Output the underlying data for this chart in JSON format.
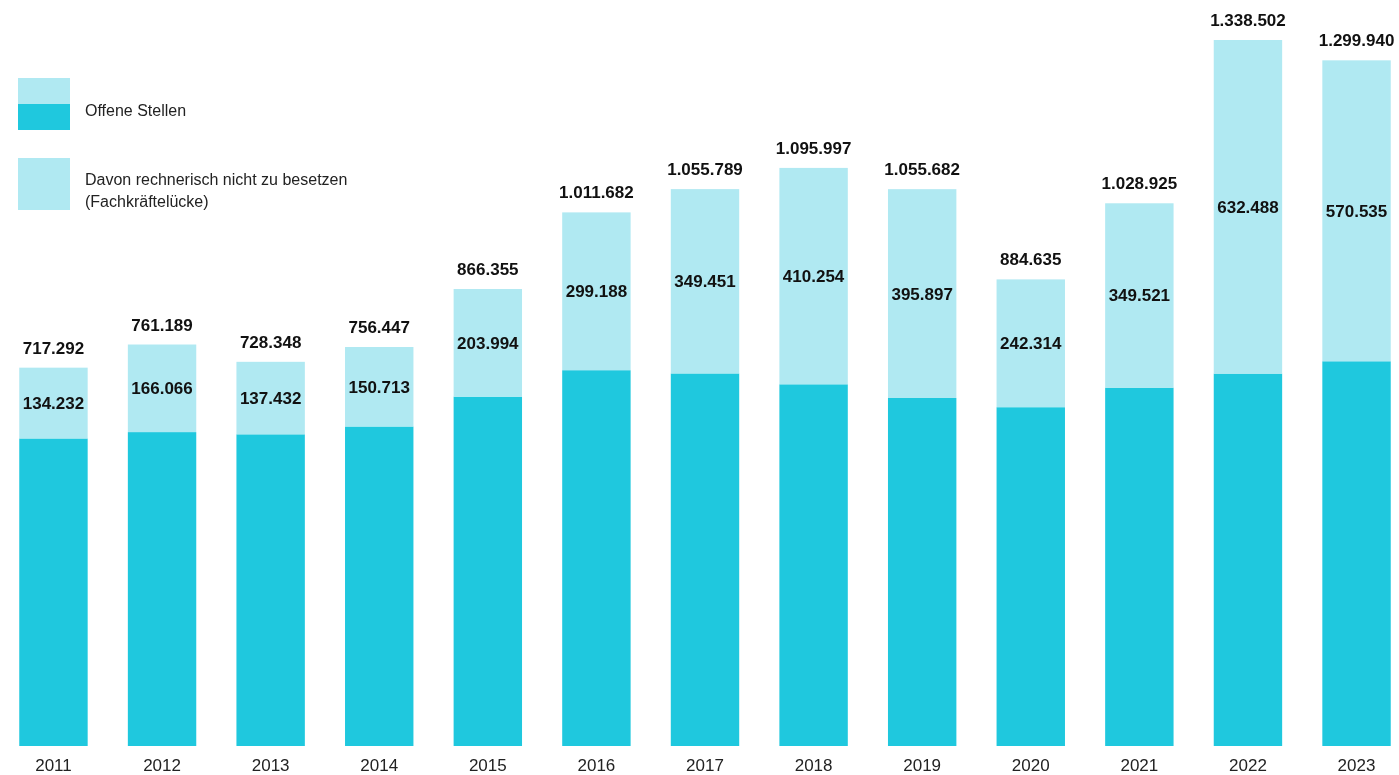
{
  "chart_data": {
    "type": "bar",
    "stacked": true,
    "categories": [
      "2011",
      "2012",
      "2013",
      "2014",
      "2015",
      "2016",
      "2017",
      "2018",
      "2019",
      "2020",
      "2021",
      "2022",
      "2023"
    ],
    "series": [
      {
        "name": "Offene Stellen",
        "color": "#1fc8de",
        "values": [
          583060,
          595123,
          590916,
          605734,
          662361,
          712494,
          706338,
          685743,
          659785,
          642321,
          679404,
          706014,
          729405
        ]
      },
      {
        "name": "Davon rechnerisch nicht zu besetzen (Fachkräftelücke)",
        "color": "#b0e9f2",
        "values": [
          134232,
          166066,
          137432,
          150713,
          203994,
          299188,
          349451,
          410254,
          395897,
          242314,
          349521,
          632488,
          570535
        ],
        "value_labels": [
          "134.232",
          "166.066",
          "137.432",
          "150.713",
          "203.994",
          "299.188",
          "349.451",
          "410.254",
          "395.897",
          "242.314",
          "349.521",
          "632.488",
          "570.535"
        ]
      }
    ],
    "totals": [
      "717.292",
      "761.189",
      "728.348",
      "756.447",
      "866.355",
      "1.011.682",
      "1.055.789",
      "1.095.997",
      "1.055.682",
      "884.635",
      "1.028.925",
      "1.338.502",
      "1.299.940"
    ],
    "legend": "top left"
  }
}
